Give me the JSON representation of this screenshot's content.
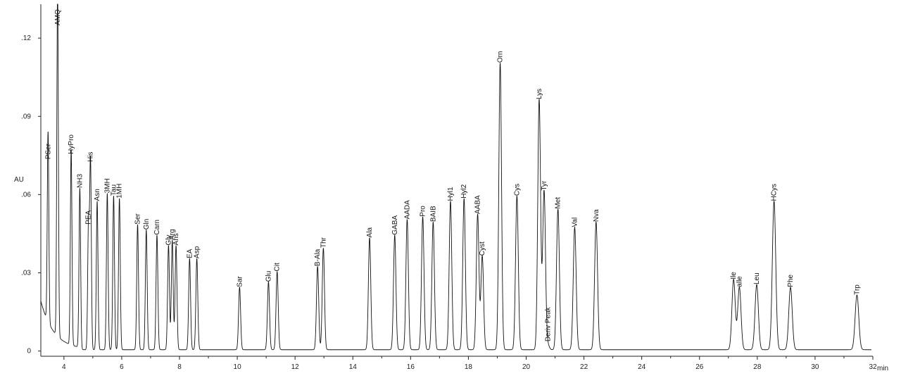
{
  "chart_data": {
    "type": "line",
    "xlabel": "min",
    "ylabel": "AU",
    "xlim": [
      3.2,
      32
    ],
    "ylim": [
      -0.002,
      0.133
    ],
    "x_ticks": [
      4,
      6,
      8,
      10,
      12,
      14,
      16,
      18,
      20,
      22,
      24,
      26,
      28,
      30,
      32
    ],
    "y_ticks": [
      {
        "value": 0,
        "label": "0"
      },
      {
        "value": 0.03,
        "label": ".03"
      },
      {
        "value": 0.06,
        "label": ".06"
      },
      {
        "value": 0.09,
        "label": ".09"
      },
      {
        "value": 0.12,
        "label": ".12"
      }
    ],
    "grid": false,
    "line_color": "#111111",
    "baseline": 0.0005,
    "peaks": [
      {
        "label": "PSer",
        "rt": 3.45,
        "height": 0.073
      },
      {
        "label": "AMQ",
        "rt": 3.78,
        "height": 0.133
      },
      {
        "label": "HyPro",
        "rt": 4.25,
        "height": 0.075
      },
      {
        "label": "NH3",
        "rt": 4.55,
        "height": 0.062
      },
      {
        "label": "PEA",
        "rt": 4.85,
        "height": 0.048
      },
      {
        "label": "His",
        "rt": 4.92,
        "height": 0.072
      },
      {
        "label": "Asn",
        "rt": 5.15,
        "height": 0.057
      },
      {
        "label": "3MH",
        "rt": 5.5,
        "height": 0.06
      },
      {
        "label": "Tau",
        "rt": 5.72,
        "height": 0.059
      },
      {
        "label": "1MH",
        "rt": 5.92,
        "height": 0.058
      },
      {
        "label": "Ser",
        "rt": 6.55,
        "height": 0.048
      },
      {
        "label": "Gln",
        "rt": 6.85,
        "height": 0.046
      },
      {
        "label": "Carn",
        "rt": 7.22,
        "height": 0.044
      },
      {
        "label": "Gly",
        "rt": 7.62,
        "height": 0.04
      },
      {
        "label": "Arg",
        "rt": 7.75,
        "height": 0.042
      },
      {
        "label": "Ans",
        "rt": 7.88,
        "height": 0.04
      },
      {
        "label": "EA",
        "rt": 8.35,
        "height": 0.035
      },
      {
        "label": "Asp",
        "rt": 8.6,
        "height": 0.035
      },
      {
        "label": "Sar",
        "rt": 10.08,
        "height": 0.024
      },
      {
        "label": "Glu",
        "rt": 11.08,
        "height": 0.026
      },
      {
        "label": "Cit",
        "rt": 11.38,
        "height": 0.03
      },
      {
        "label": "B-Ala",
        "rt": 12.78,
        "height": 0.032
      },
      {
        "label": "Thr",
        "rt": 12.98,
        "height": 0.039
      },
      {
        "label": "Ala",
        "rt": 14.58,
        "height": 0.043
      },
      {
        "label": "GABA",
        "rt": 15.45,
        "height": 0.044
      },
      {
        "label": "AADA",
        "rt": 15.88,
        "height": 0.05
      },
      {
        "label": "Pro",
        "rt": 16.42,
        "height": 0.051
      },
      {
        "label": "BAIB",
        "rt": 16.78,
        "height": 0.049
      },
      {
        "label": "Hyl1",
        "rt": 17.38,
        "height": 0.057
      },
      {
        "label": "Hyl2",
        "rt": 17.85,
        "height": 0.058
      },
      {
        "label": "AABA",
        "rt": 18.32,
        "height": 0.052
      },
      {
        "label": "Cyst",
        "rt": 18.48,
        "height": 0.036
      },
      {
        "label": "Orn",
        "rt": 19.1,
        "height": 0.11
      },
      {
        "label": "Cys",
        "rt": 19.68,
        "height": 0.059
      },
      {
        "label": "Lys",
        "rt": 20.45,
        "height": 0.096
      },
      {
        "label": "Tyr",
        "rt": 20.62,
        "height": 0.061
      },
      {
        "label": "Deriv Peak",
        "rt": 20.75,
        "height": 0.002
      },
      {
        "label": "Met",
        "rt": 21.1,
        "height": 0.054
      },
      {
        "label": "Val",
        "rt": 21.68,
        "height": 0.047
      },
      {
        "label": "Nva",
        "rt": 22.42,
        "height": 0.049
      },
      {
        "label": "Ile",
        "rt": 27.18,
        "height": 0.027
      },
      {
        "label": "alle",
        "rt": 27.38,
        "height": 0.024
      },
      {
        "label": "Leu",
        "rt": 27.98,
        "height": 0.025
      },
      {
        "label": "HCys",
        "rt": 28.58,
        "height": 0.057
      },
      {
        "label": "Phe",
        "rt": 29.15,
        "height": 0.024
      },
      {
        "label": "Trp",
        "rt": 31.45,
        "height": 0.021
      }
    ]
  }
}
